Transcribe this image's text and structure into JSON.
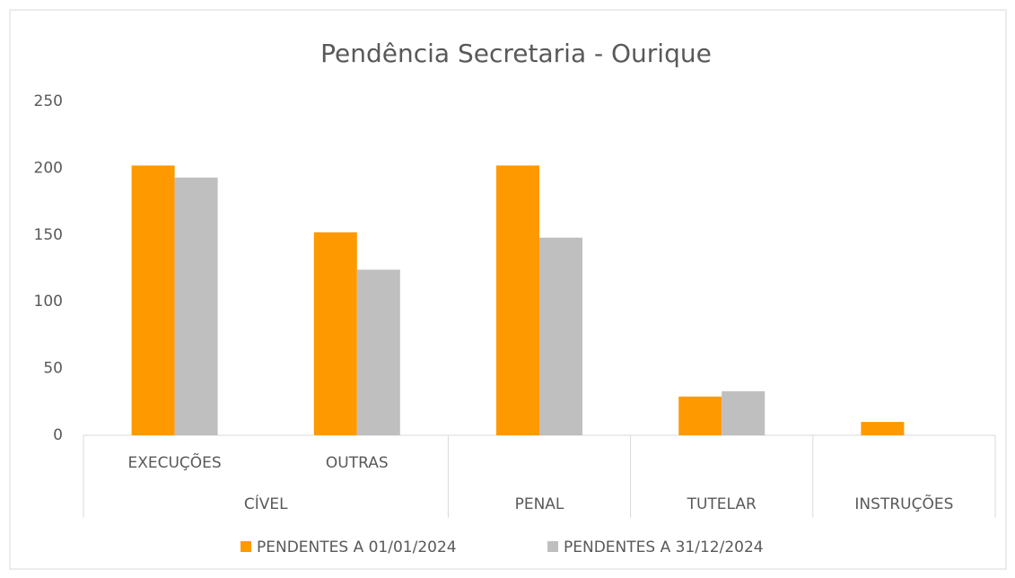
{
  "chart_data": {
    "type": "bar",
    "title": "Pendência Secretaria - Ourique",
    "categories": [
      "EXECUÇÕES",
      "OUTRAS",
      null,
      null,
      null
    ],
    "category_groups": [
      "CÍVEL",
      "CÍVEL",
      "PENAL",
      "TUTELAR",
      "INSTRUÇÕES"
    ],
    "series": [
      {
        "name": "PENDENTES A 01/01/2024",
        "color": "#ff9900",
        "values": [
          202,
          152,
          202,
          29,
          10
        ]
      },
      {
        "name": "PENDENTES A 31/12/2024",
        "color": "#bfbfbf",
        "values": [
          193,
          124,
          148,
          33,
          null
        ]
      }
    ],
    "ylim": [
      0,
      250
    ],
    "yticks": [
      0,
      50,
      100,
      150,
      200,
      250
    ],
    "grid": false,
    "legend": "bottom"
  }
}
